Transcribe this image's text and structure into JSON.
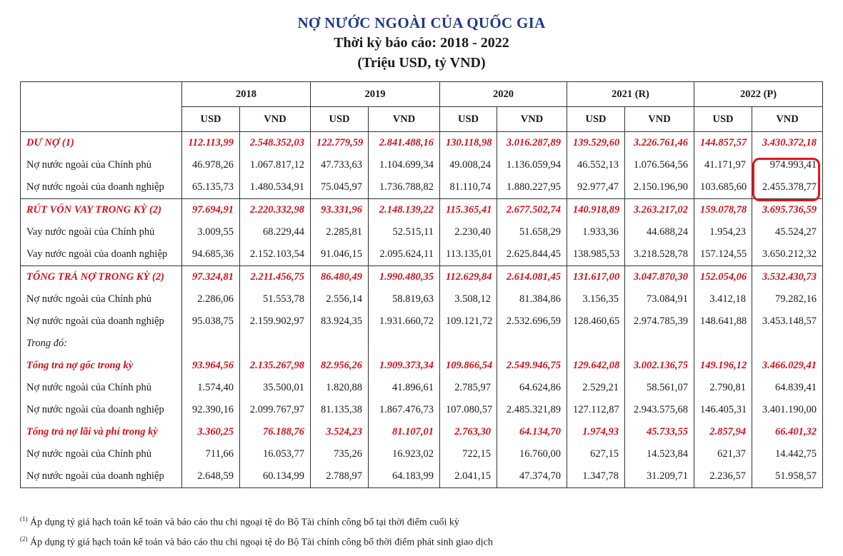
{
  "title": "NỢ NƯỚC NGOÀI CỦA QUỐC GIA",
  "subtitle": "Thời kỳ báo cáo: 2018 - 2022",
  "unit": "(Triệu USD, tỷ VND)",
  "years": [
    "2018",
    "2019",
    "2020",
    "2021 (R)",
    "2022 (P)"
  ],
  "currencies": [
    "USD",
    "VND"
  ],
  "rows": [
    {
      "label": "DƯ NỢ (1)",
      "style": "red",
      "section": true,
      "values": [
        "112.113,99",
        "2.548.352,03",
        "122.779,59",
        "2.841.488,16",
        "130.118,98",
        "3.016.287,89",
        "139.529,60",
        "3.226.761,46",
        "144.857,57",
        "3.430.372,18"
      ]
    },
    {
      "label": "Nợ nước ngoài của Chính phủ",
      "style": "normal",
      "values": [
        "46.978,26",
        "1.067.817,12",
        "47.733,63",
        "1.104.699,34",
        "49.008,24",
        "1.136.059,94",
        "46.552,13",
        "1.076.564,56",
        "41.171,97",
        "974.993,41"
      ]
    },
    {
      "label": "Nợ nước ngoài của doanh nghiệp",
      "style": "normal",
      "values": [
        "65.135,73",
        "1.480.534,91",
        "75.045,97",
        "1.736.788,82",
        "81.110,74",
        "1.880.227,95",
        "92.977,47",
        "2.150.196,90",
        "103.685,60",
        "2.455.378,77"
      ]
    },
    {
      "label": "RÚT VỐN VAY TRONG KỲ (2)",
      "style": "red",
      "section": true,
      "values": [
        "97.694,91",
        "2.220.332,98",
        "93.331,96",
        "2.148.139,22",
        "115.365,41",
        "2.677.502,74",
        "140.918,89",
        "3.263.217,02",
        "159.078,78",
        "3.695.736,59"
      ]
    },
    {
      "label": "Vay nước ngoài của Chính phủ",
      "style": "normal",
      "values": [
        "3.009,55",
        "68.229,44",
        "2.285,81",
        "52.515,11",
        "2.230,40",
        "51.658,29",
        "1.933,36",
        "44.688,24",
        "1.954,23",
        "45.524,27"
      ]
    },
    {
      "label": "Vay nước ngoài của doanh nghiệp",
      "style": "normal",
      "values": [
        "94.685,36",
        "2.152.103,54",
        "91.046,15",
        "2.095.624,11",
        "113.135,01",
        "2.625.844,45",
        "138.985,53",
        "3.218.528,78",
        "157.124,55",
        "3.650.212,32"
      ]
    },
    {
      "label": "TỔNG TRẢ NỢ TRONG KỲ (2)",
      "style": "red",
      "section": true,
      "values": [
        "97.324,81",
        "2.211.456,75",
        "86.480,49",
        "1.990.480,35",
        "112.629,84",
        "2.614.081,45",
        "131.617,00",
        "3.047.870,30",
        "152.054,06",
        "3.532.430,73"
      ]
    },
    {
      "label": "Nợ nước ngoài của Chính phủ",
      "style": "normal",
      "values": [
        "2.286,06",
        "51.553,78",
        "2.556,14",
        "58.819,63",
        "3.508,12",
        "81.384,86",
        "3.156,35",
        "73.084,91",
        "3.412,18",
        "79.282,16"
      ]
    },
    {
      "label": "Nợ nước ngoài của doanh nghiệp",
      "style": "normal",
      "values": [
        "95.038,75",
        "2.159.902,97",
        "83.924,35",
        "1.931.660,72",
        "109.121,72",
        "2.532.696,59",
        "128.460,65",
        "2.974.785,39",
        "148.641,88",
        "3.453.148,57"
      ]
    },
    {
      "label": "Trong đó:",
      "style": "italic",
      "values": [
        "",
        "",
        "",
        "",
        "",
        "",
        "",
        "",
        "",
        ""
      ]
    },
    {
      "label": "Tổng trả nợ gốc trong kỳ",
      "style": "red",
      "values": [
        "93.964,56",
        "2.135.267,98",
        "82.956,26",
        "1.909.373,34",
        "109.866,54",
        "2.549.946,75",
        "129.642,08",
        "3.002.136,75",
        "149.196,12",
        "3.466.029,41"
      ]
    },
    {
      "label": "Nợ nước ngoài của Chính phủ",
      "style": "normal",
      "values": [
        "1.574,40",
        "35.500,01",
        "1.820,88",
        "41.896,61",
        "2.785,97",
        "64.624,86",
        "2.529,21",
        "58.561,07",
        "2.790,81",
        "64.839,41"
      ]
    },
    {
      "label": "Nợ nước ngoài của doanh nghiệp",
      "style": "normal",
      "values": [
        "92.390,16",
        "2.099.767,97",
        "81.135,38",
        "1.867.476,73",
        "107.080,57",
        "2.485.321,89",
        "127.112,87",
        "2.943.575,68",
        "146.405,31",
        "3.401.190,00"
      ]
    },
    {
      "label": "Tổng trả nợ lãi và phí trong kỳ",
      "style": "red",
      "values": [
        "3.360,25",
        "76.188,76",
        "3.524,23",
        "81.107,01",
        "2.763,30",
        "64.134,70",
        "1.974,93",
        "45.733,55",
        "2.857,94",
        "66.401,32"
      ]
    },
    {
      "label": "Nợ nước ngoài của Chính phủ",
      "style": "normal",
      "values": [
        "711,66",
        "16.053,77",
        "735,26",
        "16.923,02",
        "722,15",
        "16.760,00",
        "627,15",
        "14.523,84",
        "621,37",
        "14.442,75"
      ]
    },
    {
      "label": "Nợ nước ngoài của doanh nghiệp",
      "style": "normal",
      "values": [
        "2.648,59",
        "60.134,99",
        "2.788,97",
        "64.183,99",
        "2.041,15",
        "47.374,70",
        "1.347,78",
        "31.209,71",
        "2.236,57",
        "51.958,57"
      ]
    }
  ],
  "notes": [
    {
      "mark": "(1)",
      "text": "Áp dụng tỷ giá hạch toán kế toán và báo cáo thu chi ngoại tệ do Bộ Tài chính công bố tại thời điểm cuối kỳ"
    },
    {
      "mark": "(2)",
      "text": "Áp dụng tỷ giá hạch toán kế toán và báo cáo thu chi ngoại tệ do Bộ Tài chính công bố thời điểm phát sinh giao dịch"
    }
  ],
  "highlight_color": "#e8141c",
  "title_color": "#1f3a8a",
  "red_color": "#d0121b"
}
